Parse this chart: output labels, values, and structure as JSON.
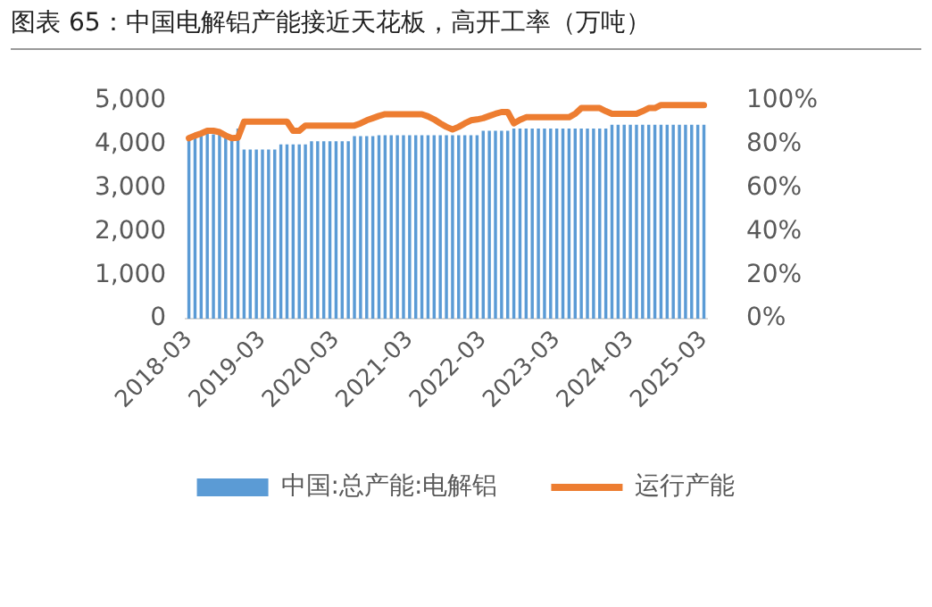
{
  "chart_data": {
    "type": "bar",
    "title": "图表 65：中国电解铝产能接近天花板，高开工率（万吨）",
    "categories": [
      "2018-03",
      null,
      null,
      null,
      null,
      null,
      null,
      null,
      null,
      null,
      null,
      null,
      "2019-03",
      null,
      null,
      null,
      null,
      null,
      null,
      null,
      null,
      null,
      null,
      null,
      "2020-03",
      null,
      null,
      null,
      null,
      null,
      null,
      null,
      null,
      null,
      null,
      null,
      "2021-03",
      null,
      null,
      null,
      null,
      null,
      null,
      null,
      null,
      null,
      null,
      null,
      "2022-03",
      null,
      null,
      null,
      null,
      null,
      null,
      null,
      null,
      null,
      null,
      null,
      "2023-03",
      null,
      null,
      null,
      null,
      null,
      null,
      null,
      null,
      null,
      null,
      null,
      "2024-03",
      null,
      null,
      null,
      null,
      null,
      null,
      null,
      null,
      null,
      null,
      null,
      "2025-03"
    ],
    "series": [
      {
        "name": "中国:总产能:电解铝",
        "color": "#5b9bd5",
        "values": [
          4200,
          4220,
          4250,
          4250,
          4230,
          4220,
          4200,
          4200,
          4360,
          3880,
          3880,
          3880,
          3880,
          3880,
          3880,
          4000,
          4000,
          4000,
          4000,
          4000,
          4070,
          4070,
          4070,
          4070,
          4070,
          4070,
          4070,
          4190,
          4190,
          4190,
          4190,
          4210,
          4210,
          4210,
          4210,
          4210,
          4210,
          4210,
          4210,
          4210,
          4210,
          4210,
          4210,
          4210,
          4210,
          4210,
          4210,
          4210,
          4310,
          4310,
          4310,
          4310,
          4310,
          4360,
          4360,
          4360,
          4360,
          4360,
          4360,
          4360,
          4360,
          4360,
          4360,
          4360,
          4360,
          4360,
          4360,
          4360,
          4360,
          4450,
          4450,
          4450,
          4450,
          4450,
          4450,
          4450,
          4450,
          4450,
          4450,
          4450,
          4450,
          4450,
          4450,
          4450,
          4450
        ]
      },
      {
        "name": "运行产能",
        "type": "line",
        "color": "#ed7d31",
        "values": [
          4140,
          4200,
          4250,
          4310,
          4310,
          4280,
          4200,
          4140,
          4150,
          4520,
          4520,
          4520,
          4520,
          4520,
          4520,
          4520,
          4520,
          4310,
          4310,
          4430,
          4430,
          4430,
          4430,
          4430,
          4430,
          4430,
          4430,
          4430,
          4480,
          4550,
          4600,
          4650,
          4690,
          4690,
          4690,
          4690,
          4690,
          4690,
          4690,
          4640,
          4570,
          4480,
          4400,
          4340,
          4400,
          4480,
          4550,
          4570,
          4600,
          4650,
          4700,
          4740,
          4740,
          4480,
          4560,
          4620,
          4620,
          4620,
          4620,
          4620,
          4620,
          4620,
          4620,
          4700,
          4830,
          4830,
          4830,
          4830,
          4760,
          4700,
          4700,
          4700,
          4700,
          4700,
          4760,
          4830,
          4830,
          4900,
          4900,
          4900,
          4900,
          4900,
          4900,
          4900,
          4900
        ]
      }
    ],
    "ylim": [
      0,
      5000
    ],
    "yticks": [
      {
        "value": 0,
        "label": "0"
      },
      {
        "value": 1000,
        "label": "1,000"
      },
      {
        "value": 2000,
        "label": "2,000"
      },
      {
        "value": 3000,
        "label": "3,000"
      },
      {
        "value": 4000,
        "label": "4,000"
      },
      {
        "value": 5000,
        "label": "5,000"
      }
    ],
    "y2lim": [
      0,
      100
    ],
    "y2ticks": [
      {
        "value": 0,
        "label": "0%"
      },
      {
        "value": 20,
        "label": "20%"
      },
      {
        "value": 40,
        "label": "40%"
      },
      {
        "value": 60,
        "label": "60%"
      },
      {
        "value": 80,
        "label": "80%"
      },
      {
        "value": 100,
        "label": "100%"
      }
    ],
    "legend": "bottom",
    "grid": false,
    "marker": "none"
  }
}
